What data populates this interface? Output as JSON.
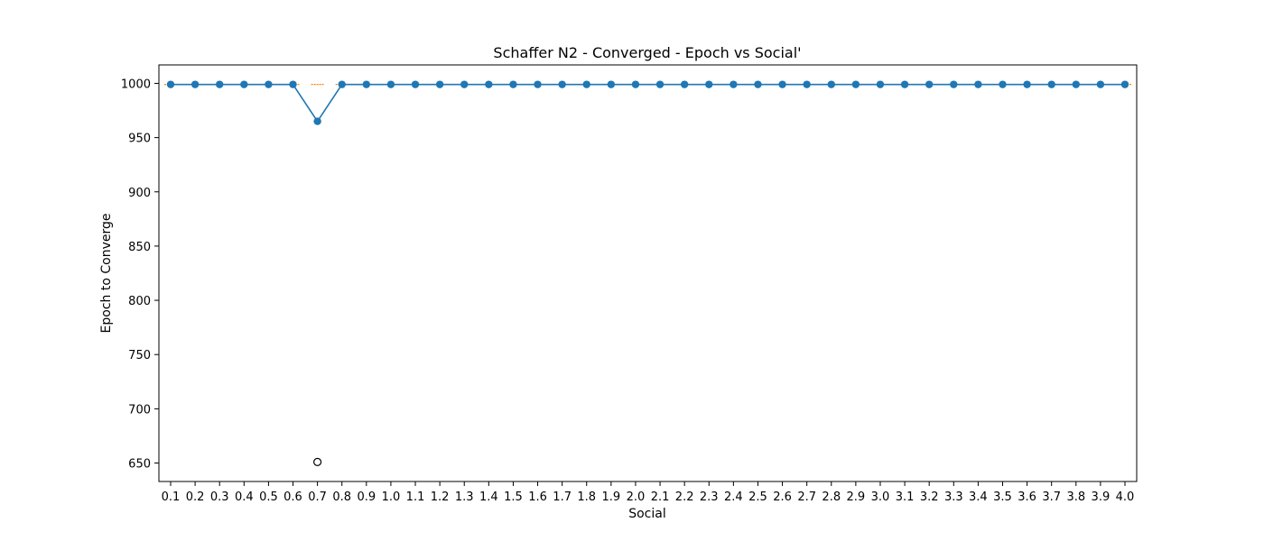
{
  "chart_data": {
    "type": "line",
    "title": "Schaffer N2 - Converged - Epoch vs Social'",
    "xlabel": "Social",
    "ylabel": "Epoch to Converge",
    "categories": [
      "0.1",
      "0.2",
      "0.3",
      "0.4",
      "0.5",
      "0.6",
      "0.7",
      "0.8",
      "0.9",
      "1.0",
      "1.1",
      "1.2",
      "1.3",
      "1.4",
      "1.5",
      "1.6",
      "1.7",
      "1.8",
      "1.9",
      "2.0",
      "2.1",
      "2.2",
      "2.3",
      "2.4",
      "2.5",
      "2.6",
      "2.7",
      "2.8",
      "2.9",
      "3.0",
      "3.1",
      "3.2",
      "3.3",
      "3.4",
      "3.5",
      "3.6",
      "3.7",
      "3.8",
      "3.9",
      "4.0"
    ],
    "series": [
      {
        "values": [
          999,
          999,
          999,
          999,
          999,
          999,
          965,
          999,
          999,
          999,
          999,
          999,
          999,
          999,
          999,
          999,
          999,
          999,
          999,
          999,
          999,
          999,
          999,
          999,
          999,
          999,
          999,
          999,
          999,
          999,
          999,
          999,
          999,
          999,
          999,
          999,
          999,
          999,
          999,
          999
        ]
      }
    ],
    "medians": [
      999,
      999,
      999,
      999,
      999,
      999,
      999,
      999,
      999,
      999,
      999,
      999,
      999,
      999,
      999,
      999,
      999,
      999,
      999,
      999,
      999,
      999,
      999,
      999,
      999,
      999,
      999,
      999,
      999,
      999,
      999,
      999,
      999,
      999,
      999,
      999,
      999,
      999,
      999,
      999
    ],
    "outliers": [
      {
        "category": "0.7",
        "value": 651
      }
    ],
    "yticks": [
      650,
      700,
      750,
      800,
      850,
      900,
      950,
      1000
    ],
    "ylim": [
      633,
      1017
    ],
    "grid": false,
    "colors": {
      "line": "#1f77b4",
      "median": "#ff7f0e",
      "axis": "#000000"
    }
  }
}
